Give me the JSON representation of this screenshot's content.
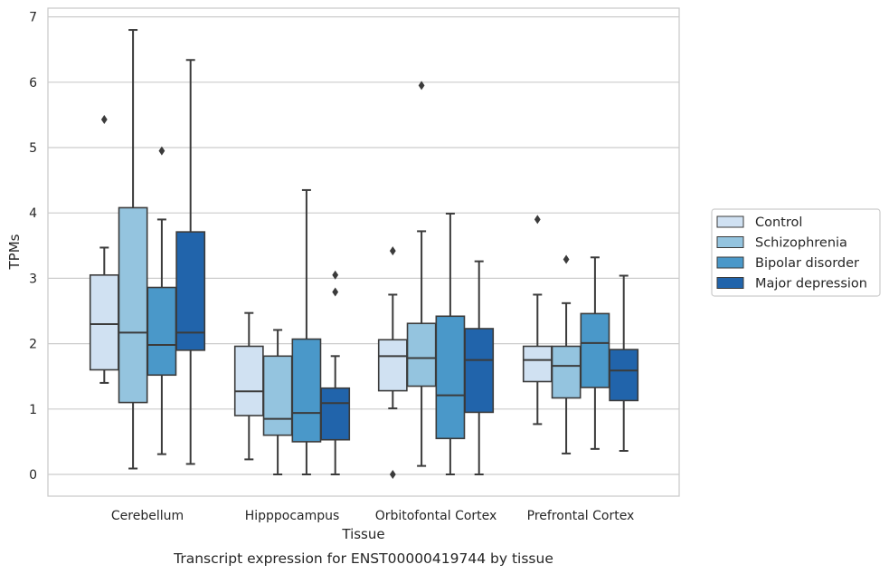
{
  "chart_data": {
    "type": "box",
    "caption": "Transcript expression for ENST00000419744 by tissue",
    "xlabel": "Tissue",
    "ylabel": "TPMs",
    "ylim": [
      -0.33,
      7.13
    ],
    "yticks": [
      0,
      1,
      2,
      3,
      4,
      5,
      6,
      7
    ],
    "grid": "horizontal",
    "legend_position": "right",
    "categories": [
      "Cerebellum",
      "Hipppocampus",
      "Orbitofontal Cortex",
      "Prefrontal Cortex"
    ],
    "series": [
      {
        "name": "Control",
        "color": "#d0e1f2",
        "boxes": [
          {
            "whislo": 1.4,
            "q1": 1.6,
            "med": 2.3,
            "q3": 3.05,
            "whishi": 3.47,
            "fliers": [
              5.43
            ]
          },
          {
            "whislo": 0.23,
            "q1": 0.9,
            "med": 1.27,
            "q3": 1.96,
            "whishi": 2.47,
            "fliers": []
          },
          {
            "whislo": 1.01,
            "q1": 1.28,
            "med": 1.81,
            "q3": 2.06,
            "whishi": 2.75,
            "fliers": [
              3.42,
              0.0
            ]
          },
          {
            "whislo": 0.77,
            "q1": 1.42,
            "med": 1.75,
            "q3": 1.96,
            "whishi": 2.75,
            "fliers": [
              3.9
            ]
          }
        ]
      },
      {
        "name": "Schizophrenia",
        "color": "#94c4df",
        "boxes": [
          {
            "whislo": 0.09,
            "q1": 1.1,
            "med": 2.17,
            "q3": 4.08,
            "whishi": 6.8,
            "fliers": []
          },
          {
            "whislo": 0.0,
            "q1": 0.6,
            "med": 0.85,
            "q3": 1.81,
            "whishi": 2.21,
            "fliers": []
          },
          {
            "whislo": 0.13,
            "q1": 1.35,
            "med": 1.78,
            "q3": 2.31,
            "whishi": 3.72,
            "fliers": [
              5.95
            ]
          },
          {
            "whislo": 0.32,
            "q1": 1.17,
            "med": 1.66,
            "q3": 1.96,
            "whishi": 2.62,
            "fliers": [
              3.29
            ]
          }
        ]
      },
      {
        "name": "Bipolar disorder",
        "color": "#4a98c9",
        "boxes": [
          {
            "whislo": 0.31,
            "q1": 1.52,
            "med": 1.98,
            "q3": 2.86,
            "whishi": 3.9,
            "fliers": [
              4.95
            ]
          },
          {
            "whislo": 0.0,
            "q1": 0.5,
            "med": 0.94,
            "q3": 2.07,
            "whishi": 4.35,
            "fliers": []
          },
          {
            "whislo": 0.0,
            "q1": 0.55,
            "med": 1.21,
            "q3": 2.42,
            "whishi": 3.99,
            "fliers": []
          },
          {
            "whislo": 0.39,
            "q1": 1.33,
            "med": 2.01,
            "q3": 2.46,
            "whishi": 3.32,
            "fliers": []
          }
        ]
      },
      {
        "name": "Major depression",
        "color": "#2164ab",
        "boxes": [
          {
            "whislo": 0.16,
            "q1": 1.9,
            "med": 2.17,
            "q3": 3.71,
            "whishi": 6.34,
            "fliers": []
          },
          {
            "whislo": 0.0,
            "q1": 0.53,
            "med": 1.09,
            "q3": 1.32,
            "whishi": 1.81,
            "fliers": [
              3.05,
              2.79
            ]
          },
          {
            "whislo": 0.0,
            "q1": 0.95,
            "med": 1.75,
            "q3": 2.23,
            "whishi": 3.26,
            "fliers": []
          },
          {
            "whislo": 0.36,
            "q1": 1.13,
            "med": 1.59,
            "q3": 1.91,
            "whishi": 3.04,
            "fliers": []
          }
        ]
      }
    ]
  },
  "colors": {
    "frame": "#cccccc",
    "grid": "#cccccc",
    "lines": "#3b3b3b",
    "text": "#262626"
  }
}
